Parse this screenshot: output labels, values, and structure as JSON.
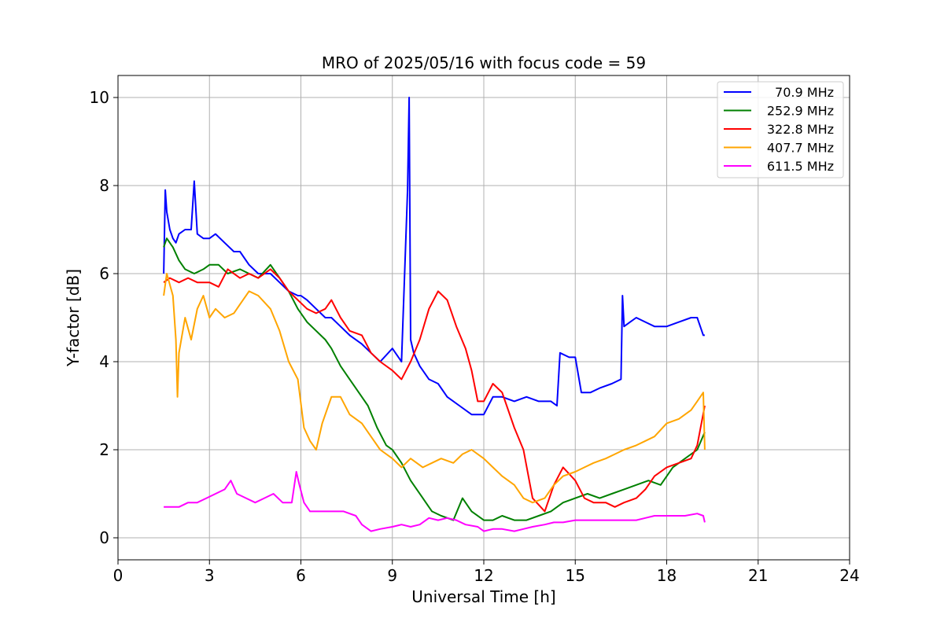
{
  "chart_data": {
    "type": "line",
    "title": "MRO of 2025/05/16 with focus code = 59",
    "xlabel": "Universal Time [h]",
    "ylabel": "Y-factor [dB]",
    "xlim": [
      0,
      24
    ],
    "ylim": [
      -0.5,
      10.5
    ],
    "xticks": [
      0,
      3,
      6,
      9,
      12,
      15,
      18,
      21,
      24
    ],
    "yticks": [
      0,
      2,
      4,
      6,
      8,
      10
    ],
    "grid": true,
    "legend_position": "top-right",
    "series": [
      {
        "name": " 70.9 MHz",
        "color": "#0000ff",
        "x": [
          1.5,
          1.55,
          1.6,
          1.7,
          1.8,
          1.9,
          2.0,
          2.2,
          2.4,
          2.5,
          2.6,
          2.8,
          3.0,
          3.2,
          3.5,
          3.8,
          4.0,
          4.3,
          4.6,
          5.0,
          5.3,
          5.6,
          5.9,
          6.0,
          6.2,
          6.5,
          6.8,
          7.0,
          7.3,
          7.6,
          8.0,
          8.3,
          8.6,
          9.0,
          9.3,
          9.5,
          9.55,
          9.6,
          9.7,
          9.9,
          10.2,
          10.5,
          10.8,
          11.2,
          11.6,
          12.0,
          12.3,
          12.6,
          13.0,
          13.4,
          13.8,
          14.2,
          14.4,
          14.5,
          14.8,
          15.0,
          15.2,
          15.5,
          15.8,
          16.2,
          16.5,
          16.55,
          16.6,
          16.8,
          17.0,
          17.3,
          17.6,
          18.0,
          18.4,
          18.8,
          19.0,
          19.2,
          19.25
        ],
        "y": [
          6.0,
          7.9,
          7.4,
          7.0,
          6.8,
          6.7,
          6.9,
          7.0,
          7.0,
          8.1,
          6.9,
          6.8,
          6.8,
          6.9,
          6.7,
          6.5,
          6.5,
          6.2,
          6.0,
          6.0,
          5.8,
          5.6,
          5.5,
          5.5,
          5.4,
          5.2,
          5.0,
          5.0,
          4.8,
          4.6,
          4.4,
          4.2,
          4.0,
          4.3,
          4.0,
          7.9,
          10.0,
          4.5,
          4.2,
          3.9,
          3.6,
          3.5,
          3.2,
          3.0,
          2.8,
          2.8,
          3.2,
          3.2,
          3.1,
          3.2,
          3.1,
          3.1,
          3.0,
          4.2,
          4.1,
          4.1,
          3.3,
          3.3,
          3.4,
          3.5,
          3.6,
          5.5,
          4.8,
          4.9,
          5.0,
          4.9,
          4.8,
          4.8,
          4.9,
          5.0,
          5.0,
          4.6,
          4.6
        ]
      },
      {
        "name": "252.9 MHz",
        "color": "#008000",
        "x": [
          1.5,
          1.6,
          1.8,
          2.0,
          2.2,
          2.5,
          2.8,
          3.0,
          3.3,
          3.6,
          4.0,
          4.3,
          4.6,
          5.0,
          5.3,
          5.6,
          5.9,
          6.2,
          6.5,
          6.8,
          7.0,
          7.3,
          7.6,
          7.9,
          8.2,
          8.5,
          8.8,
          9.0,
          9.3,
          9.6,
          10.0,
          10.3,
          10.6,
          11.0,
          11.3,
          11.6,
          12.0,
          12.3,
          12.6,
          13.0,
          13.4,
          13.8,
          14.2,
          14.6,
          15.0,
          15.4,
          15.8,
          16.2,
          16.6,
          17.0,
          17.4,
          17.8,
          18.2,
          18.6,
          19.0,
          19.25
        ],
        "y": [
          6.6,
          6.8,
          6.6,
          6.3,
          6.1,
          6.0,
          6.1,
          6.2,
          6.2,
          6.0,
          6.1,
          6.0,
          5.9,
          6.2,
          5.9,
          5.6,
          5.2,
          4.9,
          4.7,
          4.5,
          4.3,
          3.9,
          3.6,
          3.3,
          3.0,
          2.5,
          2.1,
          2.0,
          1.7,
          1.3,
          0.9,
          0.6,
          0.5,
          0.4,
          0.9,
          0.6,
          0.4,
          0.4,
          0.5,
          0.4,
          0.4,
          0.5,
          0.6,
          0.8,
          0.9,
          1.0,
          0.9,
          1.0,
          1.1,
          1.2,
          1.3,
          1.2,
          1.6,
          1.8,
          2.0,
          2.4
        ]
      },
      {
        "name": "322.8 MHz",
        "color": "#ff0000",
        "x": [
          1.5,
          1.7,
          2.0,
          2.3,
          2.6,
          3.0,
          3.3,
          3.6,
          4.0,
          4.3,
          4.6,
          5.0,
          5.3,
          5.6,
          5.9,
          6.2,
          6.5,
          6.8,
          7.0,
          7.3,
          7.6,
          8.0,
          8.3,
          8.6,
          9.0,
          9.3,
          9.6,
          9.9,
          10.2,
          10.5,
          10.8,
          11.1,
          11.4,
          11.6,
          11.8,
          12.0,
          12.3,
          12.6,
          13.0,
          13.3,
          13.6,
          14.0,
          14.3,
          14.6,
          15.0,
          15.3,
          15.6,
          16.0,
          16.3,
          16.6,
          17.0,
          17.3,
          17.6,
          18.0,
          18.4,
          18.8,
          19.0,
          19.25
        ],
        "y": [
          5.8,
          5.9,
          5.8,
          5.9,
          5.8,
          5.8,
          5.7,
          6.1,
          5.9,
          6.0,
          5.9,
          6.1,
          5.9,
          5.6,
          5.4,
          5.2,
          5.1,
          5.2,
          5.4,
          5.0,
          4.7,
          4.6,
          4.2,
          4.0,
          3.8,
          3.6,
          4.0,
          4.5,
          5.2,
          5.6,
          5.4,
          4.8,
          4.3,
          3.8,
          3.1,
          3.1,
          3.5,
          3.3,
          2.5,
          2.0,
          0.9,
          0.6,
          1.2,
          1.6,
          1.3,
          0.9,
          0.8,
          0.8,
          0.7,
          0.8,
          0.9,
          1.1,
          1.4,
          1.6,
          1.7,
          1.8,
          2.1,
          3.0
        ]
      },
      {
        "name": "407.7 MHz",
        "color": "#ffa500",
        "x": [
          1.5,
          1.6,
          1.8,
          1.9,
          1.95,
          2.0,
          2.2,
          2.4,
          2.6,
          2.8,
          3.0,
          3.2,
          3.5,
          3.8,
          4.0,
          4.3,
          4.6,
          5.0,
          5.3,
          5.6,
          5.9,
          6.1,
          6.3,
          6.5,
          6.7,
          7.0,
          7.3,
          7.6,
          8.0,
          8.3,
          8.6,
          9.0,
          9.3,
          9.6,
          10.0,
          10.3,
          10.6,
          11.0,
          11.3,
          11.6,
          12.0,
          12.3,
          12.6,
          13.0,
          13.3,
          13.6,
          14.0,
          14.3,
          14.6,
          15.0,
          15.3,
          15.6,
          16.0,
          16.3,
          16.6,
          17.0,
          17.3,
          17.6,
          18.0,
          18.4,
          18.8,
          19.0,
          19.2,
          19.25
        ],
        "y": [
          5.5,
          6.0,
          5.5,
          4.5,
          3.2,
          4.2,
          5.0,
          4.5,
          5.2,
          5.5,
          5.0,
          5.2,
          5.0,
          5.1,
          5.3,
          5.6,
          5.5,
          5.2,
          4.7,
          4.0,
          3.6,
          2.5,
          2.2,
          2.0,
          2.6,
          3.2,
          3.2,
          2.8,
          2.6,
          2.3,
          2.0,
          1.8,
          1.6,
          1.8,
          1.6,
          1.7,
          1.8,
          1.7,
          1.9,
          2.0,
          1.8,
          1.6,
          1.4,
          1.2,
          0.9,
          0.8,
          0.9,
          1.2,
          1.4,
          1.5,
          1.6,
          1.7,
          1.8,
          1.9,
          2.0,
          2.1,
          2.2,
          2.3,
          2.6,
          2.7,
          2.9,
          3.1,
          3.3,
          2.0
        ]
      },
      {
        "name": "611.5 MHz",
        "color": "#ff00ff",
        "x": [
          1.5,
          1.8,
          2.0,
          2.3,
          2.6,
          2.9,
          3.2,
          3.5,
          3.7,
          3.9,
          4.2,
          4.5,
          4.8,
          5.1,
          5.4,
          5.7,
          5.85,
          5.95,
          6.1,
          6.3,
          6.6,
          7.0,
          7.4,
          7.8,
          8.0,
          8.3,
          8.6,
          9.0,
          9.3,
          9.6,
          9.9,
          10.2,
          10.5,
          10.8,
          11.1,
          11.4,
          11.8,
          12.0,
          12.3,
          12.6,
          13.0,
          13.3,
          13.6,
          14.0,
          14.3,
          14.6,
          15.0,
          15.3,
          15.6,
          16.0,
          16.3,
          16.6,
          17.0,
          17.3,
          17.6,
          18.0,
          18.3,
          18.6,
          19.0,
          19.2,
          19.25
        ],
        "y": [
          0.7,
          0.7,
          0.7,
          0.8,
          0.8,
          0.9,
          1.0,
          1.1,
          1.3,
          1.0,
          0.9,
          0.8,
          0.9,
          1.0,
          0.8,
          0.8,
          1.5,
          1.2,
          0.8,
          0.6,
          0.6,
          0.6,
          0.6,
          0.5,
          0.3,
          0.15,
          0.2,
          0.25,
          0.3,
          0.25,
          0.3,
          0.45,
          0.4,
          0.45,
          0.4,
          0.3,
          0.25,
          0.15,
          0.2,
          0.2,
          0.15,
          0.2,
          0.25,
          0.3,
          0.35,
          0.35,
          0.4,
          0.4,
          0.4,
          0.4,
          0.4,
          0.4,
          0.4,
          0.45,
          0.5,
          0.5,
          0.5,
          0.5,
          0.55,
          0.5,
          0.35
        ]
      }
    ]
  }
}
